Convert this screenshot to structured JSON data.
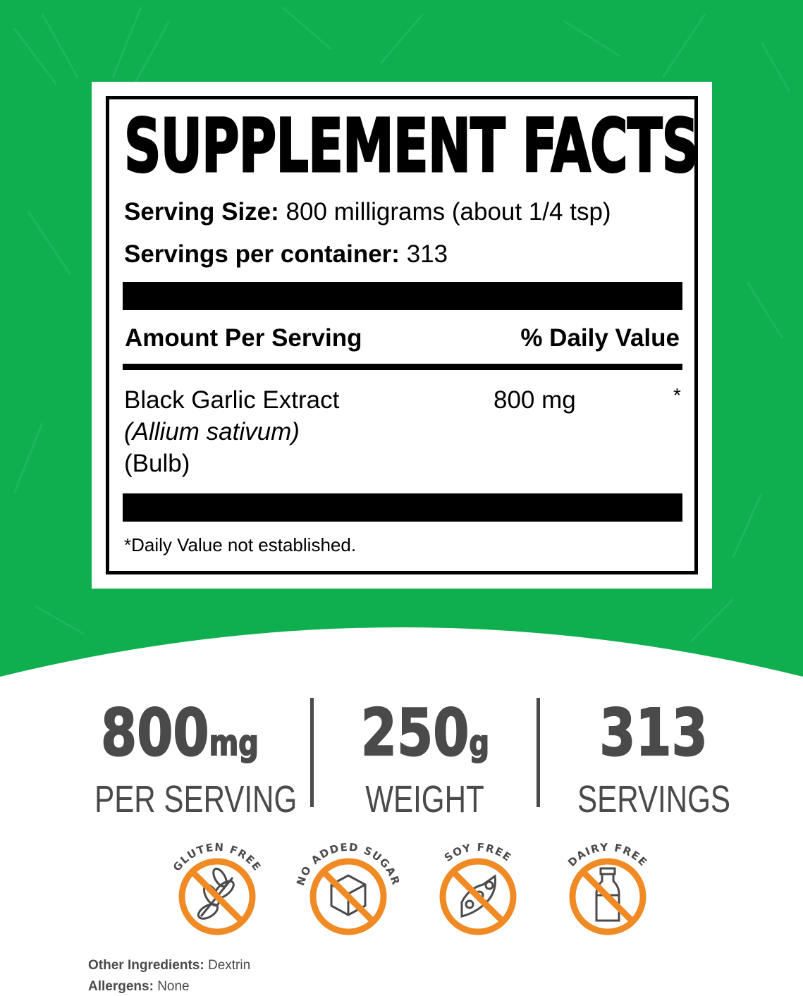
{
  "colors": {
    "background_green": "#0fae4f",
    "label_black": "#000000",
    "stat_gray": "#4a4a4a",
    "badge_orange": "#f08a24"
  },
  "facts": {
    "title": "SUPPLEMENT FACTS",
    "serving_size_label": "Serving Size:",
    "serving_size_value": "800 milligrams (about 1/4 tsp)",
    "servings_label": "Servings per container:",
    "servings_value": "313",
    "amount_header": "Amount Per Serving",
    "dv_header": "% Daily Value",
    "ingredient": {
      "name": "Black Garlic Extract",
      "latin": "(Allium sativum)",
      "part": "(Bulb)",
      "amount": "800 mg",
      "dv": "*"
    },
    "footnote": "*Daily Value not established."
  },
  "stats": [
    {
      "number": "800",
      "unit": "mg",
      "label": "PER SERVING"
    },
    {
      "number": "250",
      "unit": "g",
      "label": "WEIGHT"
    },
    {
      "number": "313",
      "unit": "",
      "label": "SERVINGS"
    }
  ],
  "badges": [
    {
      "text": "GLUTEN FREE",
      "icon": "wheat-icon"
    },
    {
      "text": "NO ADDED SUGAR",
      "icon": "sugar-cube-icon"
    },
    {
      "text": "SOY FREE",
      "icon": "soybean-icon"
    },
    {
      "text": "DAIRY FREE",
      "icon": "milk-bottle-icon"
    }
  ],
  "footer": {
    "other_label": "Other Ingredients:",
    "other_value": "Dextrin",
    "allergens_label": "Allergens:",
    "allergens_value": "None"
  }
}
